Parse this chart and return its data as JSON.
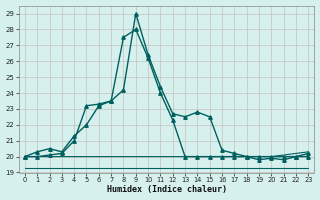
{
  "xlabel": "Humidex (Indice chaleur)",
  "bg_color": "#d6f0ee",
  "grid_color_major": "#b8d8d0",
  "grid_color_minor": "#c8e8e0",
  "line_color": "#005f5f",
  "xlim": [
    -0.5,
    23.5
  ],
  "ylim": [
    19,
    29.5
  ],
  "yticks": [
    19,
    20,
    21,
    22,
    23,
    24,
    25,
    26,
    27,
    28,
    29
  ],
  "xticks": [
    0,
    1,
    2,
    3,
    4,
    5,
    6,
    7,
    8,
    9,
    10,
    11,
    12,
    13,
    14,
    15,
    16,
    17,
    18,
    19,
    20,
    21,
    22,
    23
  ],
  "series": [
    {
      "x": [
        0,
        1,
        2,
        3,
        4,
        5,
        6,
        7,
        8,
        9,
        10,
        11,
        12,
        13,
        14,
        15,
        16,
        17,
        18,
        19,
        20,
        21,
        22,
        23
      ],
      "y": [
        20.0,
        20.3,
        20.5,
        20.3,
        21.3,
        22.0,
        23.2,
        23.5,
        24.2,
        29.0,
        26.4,
        24.4,
        22.7,
        22.5,
        22.8,
        22.5,
        20.4,
        20.2,
        20.0,
        19.8,
        19.9,
        19.8,
        20.0,
        20.2
      ],
      "marker": "^",
      "markersize": 2.5,
      "linewidth": 1.0
    },
    {
      "x": [
        0,
        1,
        2,
        3,
        4,
        5,
        6,
        7,
        8,
        9,
        10,
        11,
        12,
        13,
        14,
        15,
        16,
        17,
        18,
        19,
        20,
        21,
        22,
        23
      ],
      "y": [
        20.0,
        20.0,
        20.1,
        20.2,
        21.0,
        23.2,
        23.3,
        23.5,
        27.5,
        28.0,
        26.2,
        24.0,
        22.3,
        20.0,
        20.0,
        20.0,
        20.0,
        20.0,
        20.0,
        20.0,
        20.0,
        20.0,
        20.0,
        20.0
      ],
      "marker": "^",
      "markersize": 2.5,
      "linewidth": 1.0
    },
    {
      "x": [
        0,
        1,
        2,
        3,
        4,
        5,
        6,
        7,
        8,
        9,
        10,
        11,
        12,
        13,
        14,
        15,
        16,
        17,
        18,
        19,
        20,
        21,
        22,
        23
      ],
      "y": [
        20.0,
        20.0,
        20.0,
        20.0,
        20.0,
        20.0,
        20.0,
        20.0,
        20.0,
        20.0,
        20.0,
        20.0,
        20.0,
        20.0,
        20.0,
        20.0,
        20.0,
        20.0,
        20.0,
        20.0,
        20.0,
        20.1,
        20.2,
        20.3
      ],
      "marker": null,
      "markersize": 0,
      "linewidth": 0.8
    },
    {
      "x": [
        0,
        1,
        2,
        3,
        4,
        5,
        6,
        7,
        8,
        9,
        10,
        11,
        12,
        13,
        14,
        15,
        16,
        17,
        18,
        19,
        20,
        21,
        22,
        23
      ],
      "y": [
        19.3,
        19.3,
        19.3,
        19.3,
        19.3,
        19.3,
        19.3,
        19.3,
        19.3,
        19.3,
        19.3,
        19.3,
        19.3,
        19.3,
        19.3,
        19.3,
        19.3,
        19.3,
        19.3,
        19.3,
        19.3,
        19.3,
        19.3,
        19.3
      ],
      "marker": null,
      "markersize": 0,
      "linewidth": 0.8
    }
  ]
}
